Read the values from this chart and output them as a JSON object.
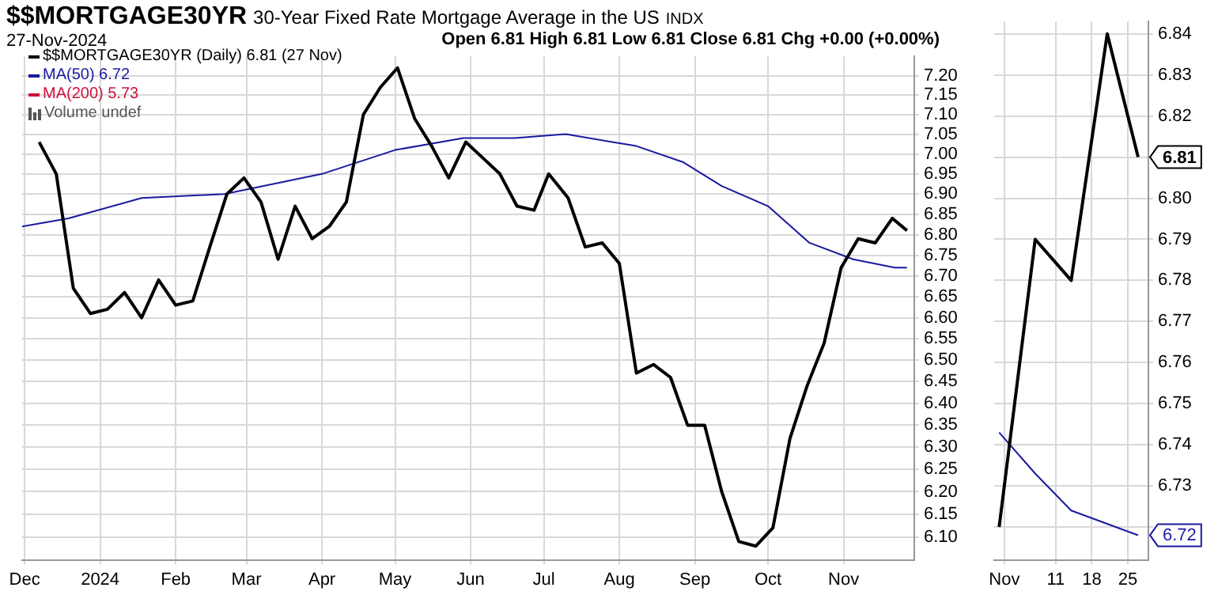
{
  "chart_data": [
    {
      "type": "line",
      "title": "$$MORTGAGE30YR",
      "subtitle": "30-Year Fixed Rate Mortgage Average in the US",
      "annotations": [
        "INDX",
        "27-Nov-2024",
        "Open 6.81  High 6.81  Low 6.81  Close 6.81  Chg +0.00 (+0.00%)",
        "MA(200) 5.73",
        "Volume undef"
      ],
      "log": true,
      "grid": true,
      "legend": "top left",
      "xlim": [
        "2023-11-30",
        "2024-11-30"
      ],
      "xticks": [
        {
          "value": "2023-12-01",
          "label": "Dec"
        },
        {
          "value": "2024-01-01",
          "label": "2024"
        },
        {
          "value": "2024-02-01",
          "label": "Feb"
        },
        {
          "value": "2024-03-01",
          "label": "Mar"
        },
        {
          "value": "2024-04-01",
          "label": "Apr"
        },
        {
          "value": "2024-05-01",
          "label": "May"
        },
        {
          "value": "2024-06-01",
          "label": "Jun"
        },
        {
          "value": "2024-07-01",
          "label": "Jul"
        },
        {
          "value": "2024-08-01",
          "label": "Aug"
        },
        {
          "value": "2024-09-01",
          "label": "Sep"
        },
        {
          "value": "2024-10-01",
          "label": "Oct"
        },
        {
          "value": "2024-11-01",
          "label": "Nov"
        }
      ],
      "ylim": [
        6.05,
        7.25
      ],
      "yticks": [
        {
          "value": 6.1,
          "label": "6.10"
        },
        {
          "value": 6.15,
          "label": "6.15"
        },
        {
          "value": 6.2,
          "label": "6.20"
        },
        {
          "value": 6.25,
          "label": "6.25"
        },
        {
          "value": 6.3,
          "label": "6.30"
        },
        {
          "value": 6.35,
          "label": "6.35"
        },
        {
          "value": 6.4,
          "label": "6.40"
        },
        {
          "value": 6.45,
          "label": "6.45"
        },
        {
          "value": 6.5,
          "label": "6.50"
        },
        {
          "value": 6.55,
          "label": "6.55"
        },
        {
          "value": 6.6,
          "label": "6.60"
        },
        {
          "value": 6.65,
          "label": "6.65"
        },
        {
          "value": 6.7,
          "label": "6.70"
        },
        {
          "value": 6.75,
          "label": "6.75"
        },
        {
          "value": 6.8,
          "label": "6.80"
        },
        {
          "value": 6.85,
          "label": "6.85"
        },
        {
          "value": 6.9,
          "label": "6.90"
        },
        {
          "value": 6.95,
          "label": "6.95"
        },
        {
          "value": 7.0,
          "label": "7.00"
        },
        {
          "value": 7.05,
          "label": "7.05"
        },
        {
          "value": 7.1,
          "label": "7.10"
        },
        {
          "value": 7.15,
          "label": "7.15"
        },
        {
          "value": 7.2,
          "label": "7.20"
        }
      ],
      "series": [
        {
          "name": "$$MORTGAGE30YR (Daily) 6.81 (27 Nov)",
          "color": "#000000",
          "x": [
            "2023-12-07",
            "2023-12-14",
            "2023-12-21",
            "2023-12-28",
            "2024-01-04",
            "2024-01-11",
            "2024-01-18",
            "2024-01-25",
            "2024-02-01",
            "2024-02-08",
            "2024-02-15",
            "2024-02-22",
            "2024-02-29",
            "2024-03-07",
            "2024-03-14",
            "2024-03-21",
            "2024-03-28",
            "2024-04-04",
            "2024-04-11",
            "2024-04-18",
            "2024-04-25",
            "2024-05-02",
            "2024-05-09",
            "2024-05-16",
            "2024-05-23",
            "2024-05-30",
            "2024-06-06",
            "2024-06-13",
            "2024-06-20",
            "2024-06-27",
            "2024-07-03",
            "2024-07-11",
            "2024-07-18",
            "2024-07-25",
            "2024-08-01",
            "2024-08-08",
            "2024-08-15",
            "2024-08-22",
            "2024-08-29",
            "2024-09-05",
            "2024-09-12",
            "2024-09-19",
            "2024-09-26",
            "2024-10-03",
            "2024-10-10",
            "2024-10-17",
            "2024-10-24",
            "2024-10-31",
            "2024-11-07",
            "2024-11-14",
            "2024-11-21",
            "2024-11-27"
          ],
          "values": [
            7.03,
            6.95,
            6.67,
            6.61,
            6.62,
            6.66,
            6.6,
            6.69,
            6.63,
            6.64,
            6.77,
            6.9,
            6.94,
            6.88,
            6.74,
            6.87,
            6.79,
            6.82,
            6.88,
            7.1,
            7.17,
            7.22,
            7.09,
            7.02,
            6.94,
            7.03,
            6.99,
            6.95,
            6.87,
            6.86,
            6.95,
            6.89,
            6.77,
            6.78,
            6.73,
            6.47,
            6.49,
            6.46,
            6.35,
            6.35,
            6.2,
            6.09,
            6.08,
            6.12,
            6.32,
            6.44,
            6.54,
            6.72,
            6.79,
            6.78,
            6.84,
            6.81
          ]
        },
        {
          "name": "MA(50) 6.72",
          "color": "#1a1aa0",
          "x": [
            "2023-11-30",
            "2023-12-19",
            "2024-01-18",
            "2024-02-21",
            "2024-04-01",
            "2024-05-01",
            "2024-05-29",
            "2024-06-19",
            "2024-07-10",
            "2024-08-08",
            "2024-08-27",
            "2024-09-12",
            "2024-10-01",
            "2024-10-18",
            "2024-11-05",
            "2024-11-22",
            "2024-11-27"
          ],
          "values": [
            6.82,
            6.84,
            6.89,
            6.9,
            6.95,
            7.01,
            7.04,
            7.04,
            7.05,
            7.02,
            6.98,
            6.92,
            6.87,
            6.78,
            6.74,
            6.72,
            6.72
          ]
        }
      ]
    },
    {
      "type": "line",
      "grid": true,
      "xlim": [
        "2024-10-30",
        "2024-11-29"
      ],
      "xticks": [
        {
          "value": "2024-11-01",
          "label": "Nov"
        },
        {
          "value": "2024-11-11",
          "label": "11"
        },
        {
          "value": "2024-11-18",
          "label": "18"
        },
        {
          "value": "2024-11-25",
          "label": "25"
        }
      ],
      "ylim": [
        6.712,
        6.843
      ],
      "yticks": [
        {
          "value": 6.72,
          "label": null
        },
        {
          "value": 6.73,
          "label": "6.73"
        },
        {
          "value": 6.74,
          "label": "6.74"
        },
        {
          "value": 6.75,
          "label": "6.75"
        },
        {
          "value": 6.76,
          "label": "6.76"
        },
        {
          "value": 6.77,
          "label": "6.77"
        },
        {
          "value": 6.78,
          "label": "6.78"
        },
        {
          "value": 6.79,
          "label": "6.79"
        },
        {
          "value": 6.8,
          "label": "6.80"
        },
        {
          "value": 6.81,
          "label": null
        },
        {
          "value": 6.82,
          "label": "6.82"
        },
        {
          "value": 6.83,
          "label": "6.83"
        },
        {
          "value": 6.84,
          "label": "6.84"
        }
      ],
      "series": [
        {
          "color": "#000000",
          "x": [
            "2024-10-31",
            "2024-11-07",
            "2024-11-14",
            "2024-11-21",
            "2024-11-27"
          ],
          "values": [
            6.72,
            6.79,
            6.78,
            6.84,
            6.81
          ],
          "value_labels": [
            null,
            null,
            null,
            null,
            "6.81"
          ]
        },
        {
          "color": "#1a1aa0",
          "x": [
            "2024-10-31",
            "2024-11-07",
            "2024-11-14",
            "2024-11-27"
          ],
          "values": [
            6.743,
            6.733,
            6.724,
            6.718
          ],
          "value_labels": [
            null,
            null,
            null,
            "6.72"
          ]
        }
      ]
    }
  ]
}
